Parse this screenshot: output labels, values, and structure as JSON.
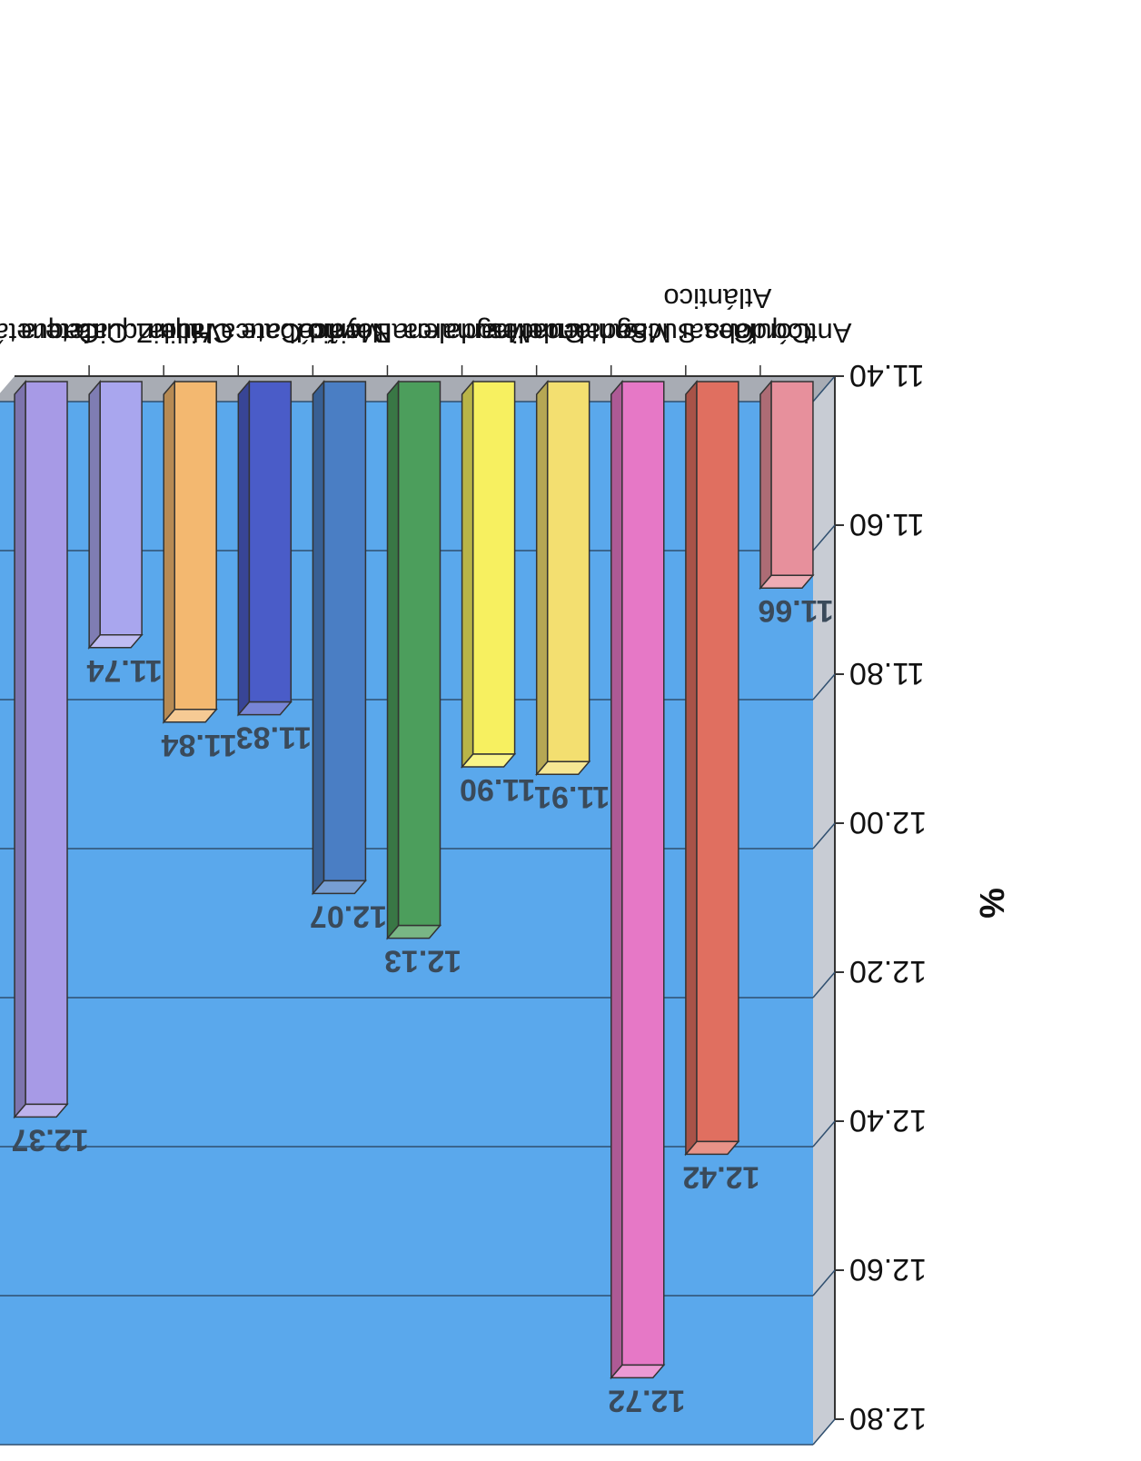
{
  "chart_data": {
    "type": "bar",
    "orientation": "rotated-180",
    "ylabel": "%",
    "ylim": [
      11.4,
      12.8
    ],
    "y_ticks": [
      "11.40",
      "11.60",
      "11.80",
      "12.00",
      "12.20",
      "12.40",
      "12.60",
      "12.80"
    ],
    "grid": true,
    "categories": [
      [
        "Antioquía"
      ],
      [
        "Córdoba Sucre",
        "Atlántico"
      ],
      [
        "Cesar Magdalena"
      ],
      [
        "Santanderes"
      ],
      [
        "Cundinamarca"
      ],
      [
        "Magdalena Medio"
      ],
      [
        "Boyacá"
      ],
      [
        "Nariño Cauca Huila"
      ],
      [
        "Ubate Chiquinquira"
      ],
      [
        "Valle Z.Cafetera"
      ],
      [
        "Caquetá"
      ]
    ],
    "values": [
      11.66,
      12.42,
      12.72,
      11.91,
      11.9,
      12.13,
      12.07,
      11.83,
      11.84,
      11.74,
      12.37
    ],
    "value_labels": [
      "11.66",
      "12.42",
      "12.72",
      "11.91",
      "11.90",
      "12.13",
      "12.07",
      "11.83",
      "11.84",
      "11.74",
      "12.37"
    ],
    "colors": {
      "plot_background": "#5aa8ec",
      "wall_side": "#c8ccd4",
      "floor": "#a8acb4",
      "gridline": "#2f4f6f",
      "bars": [
        "#e7909c",
        "#e06f60",
        "#e678c6",
        "#f3df70",
        "#f7f060",
        "#4c9e5c",
        "#4a7ec4",
        "#4a5cc8",
        "#f3b870",
        "#a9a6ee",
        "#a79ae6"
      ]
    }
  }
}
